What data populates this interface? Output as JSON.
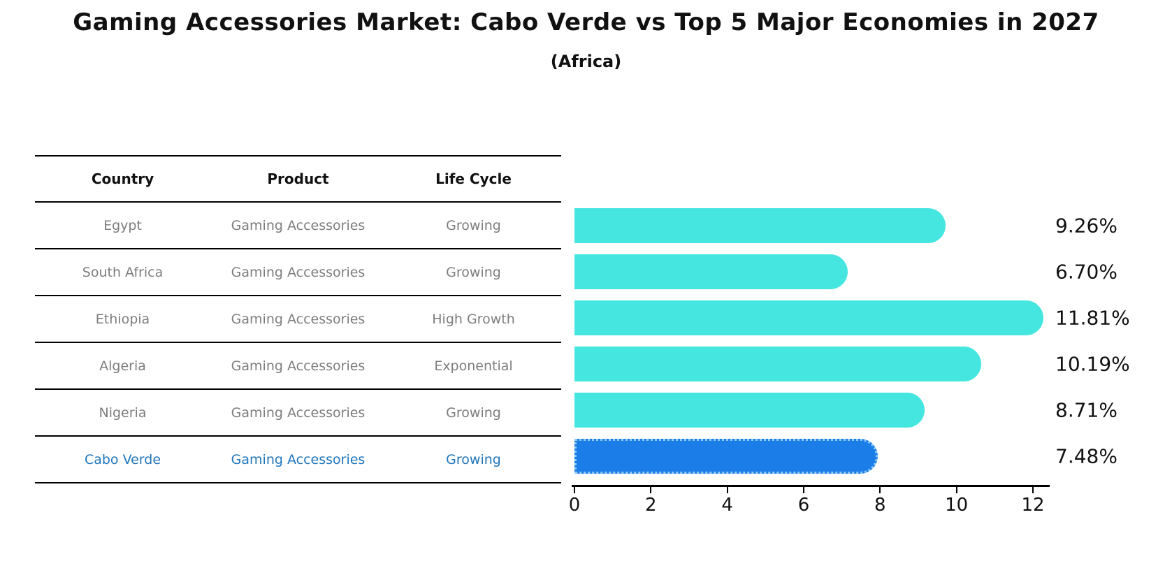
{
  "title": "Gaming Accessories Market: Cabo Verde vs Top 5 Major Economies in 2027",
  "subtitle": "(Africa)",
  "table": {
    "headers": [
      "Country",
      "Product",
      "Life Cycle"
    ],
    "rows": [
      {
        "country": "Egypt",
        "product": "Gaming Accessories",
        "life_cycle": "Growing",
        "highlight": false
      },
      {
        "country": "South Africa",
        "product": "Gaming Accessories",
        "life_cycle": "Growing",
        "highlight": false
      },
      {
        "country": "Ethiopia",
        "product": "Gaming Accessories",
        "life_cycle": "High Growth",
        "highlight": false
      },
      {
        "country": "Algeria",
        "product": "Gaming Accessories",
        "life_cycle": "Exponential",
        "highlight": false
      },
      {
        "country": "Nigeria",
        "product": "Gaming Accessories",
        "life_cycle": "Growing",
        "highlight": false
      },
      {
        "country": "Cabo Verde",
        "product": "Gaming Accessories",
        "life_cycle": "Growing",
        "highlight": true
      }
    ]
  },
  "chart_data": {
    "type": "bar",
    "orientation": "horizontal",
    "title": "Gaming Accessories Market: Cabo Verde vs Top 5 Major Economies in 2027",
    "subtitle": "(Africa)",
    "categories": [
      "Egypt",
      "South Africa",
      "Ethiopia",
      "Algeria",
      "Nigeria",
      "Cabo Verde"
    ],
    "values": [
      9.26,
      6.7,
      11.81,
      10.19,
      8.71,
      7.48
    ],
    "value_labels": [
      "9.26%",
      "6.70%",
      "11.81%",
      "10.19%",
      "8.71%",
      "7.48%"
    ],
    "x_ticks": [
      0,
      2,
      4,
      6,
      8,
      10,
      12
    ],
    "xlim": [
      0,
      12
    ],
    "grid": false,
    "legend": false,
    "highlight_index": 5,
    "bar_color": "#45e6e0",
    "highlight_bar_color": "#1b7ee8",
    "highlight_border_color": "#8ec9f5"
  },
  "colors": {
    "row_text": "#7d7d7d",
    "header_text": "#111111",
    "highlight_text": "#2176bd",
    "axis": "#000000",
    "background": "#ffffff"
  }
}
